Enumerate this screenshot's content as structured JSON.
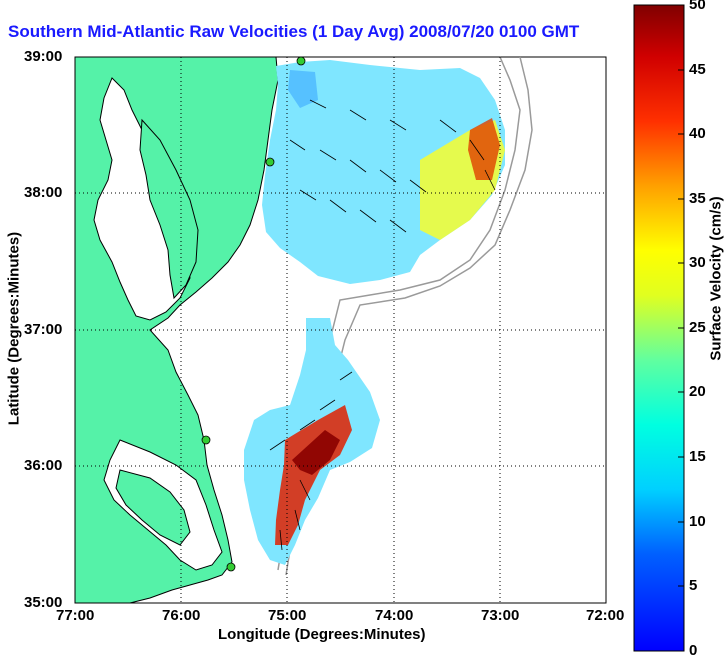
{
  "title": "Southern Mid-Atlantic Raw Velocities (1 Day Avg) 2008/07/20 0100 GMT",
  "axes": {
    "xlabel": "Longitude (Degrees:Minutes)",
    "ylabel": "Latitude (Degrees:Minutes)",
    "x_ticks": [
      "77:00",
      "76:00",
      "75:00",
      "74:00",
      "73:00",
      "72:00"
    ],
    "y_ticks": [
      "39:00",
      "38:00",
      "37:00",
      "36:00",
      "35:00"
    ],
    "xlim": [
      -77,
      -72
    ],
    "ylim": [
      35,
      39
    ],
    "grid": "dotted"
  },
  "colorbar": {
    "label": "Surface Velocity (cm/s)",
    "ticks": [
      "50",
      "45",
      "40",
      "35",
      "30",
      "25",
      "20",
      "15",
      "10",
      "5",
      "0"
    ],
    "range": [
      0,
      50
    ],
    "colormap": "jet"
  },
  "colors": {
    "land": "#55f2a8",
    "coastline": "#000000",
    "bathymetry": "#9a9a9a",
    "site_marker": "#33cc33",
    "vector": "#000000"
  },
  "sites": [
    "39:00 N coast",
    "38:12 N coast",
    "36:10 N coast",
    "35:15 N coast"
  ]
}
